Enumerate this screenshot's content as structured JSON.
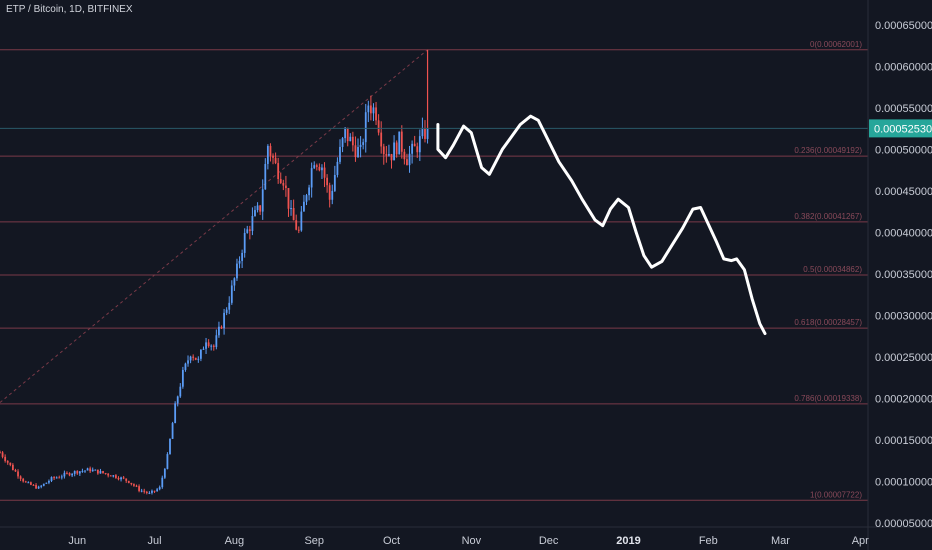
{
  "header": {
    "symbol": "ETP / Bitcoin, 1D, BITFINEX"
  },
  "colors": {
    "background": "#131722",
    "up": "#5b9cf6",
    "down": "#ef5350",
    "fib_line": "#7a3a48",
    "fib_label": "#8a4a5a",
    "drawing": "#ffffff",
    "price_tag": "#26a69a"
  },
  "chart_data": {
    "type": "candlestick",
    "title": "ETP / Bitcoin, 1D, BITFINEX",
    "y_ticks": [
      "0.00005000",
      "0.00010000",
      "0.00015000",
      "0.00020000",
      "0.00025000",
      "0.00030000",
      "0.00035000",
      "0.00040000",
      "0.00045000",
      "0.00050000",
      "0.00055000",
      "0.00060000",
      "0.00065000"
    ],
    "y_tick_values": [
      5e-05,
      0.0001,
      0.00015,
      0.0002,
      0.00025,
      0.0003,
      0.00035,
      0.0004,
      0.00045,
      0.0005,
      0.00055,
      0.0006,
      0.00065
    ],
    "ylim": [
      4.5e-05,
      0.00068
    ],
    "x_ticks": [
      {
        "label": "Jun",
        "date": "2018-06-01",
        "bold": false
      },
      {
        "label": "Jul",
        "date": "2018-07-01",
        "bold": false
      },
      {
        "label": "Aug",
        "date": "2018-08-01",
        "bold": false
      },
      {
        "label": "Sep",
        "date": "2018-09-01",
        "bold": false
      },
      {
        "label": "Oct",
        "date": "2018-10-01",
        "bold": false
      },
      {
        "label": "Nov",
        "date": "2018-11-01",
        "bold": false
      },
      {
        "label": "Dec",
        "date": "2018-12-01",
        "bold": false
      },
      {
        "label": "2019",
        "date": "2019-01-01",
        "bold": true
      },
      {
        "label": "Feb",
        "date": "2019-02-01",
        "bold": false
      },
      {
        "label": "Mar",
        "date": "2019-03-01",
        "bold": false
      },
      {
        "label": "Apr",
        "date": "2019-04-01",
        "bold": false
      }
    ],
    "xlim": [
      "2018-05-02",
      "2019-04-04"
    ],
    "last_price": {
      "label": "0.00052530",
      "value": 0.0005253
    },
    "fib_levels": [
      {
        "ratio": "0",
        "label": "0(0.00062001)",
        "value": 0.00062001
      },
      {
        "ratio": "0.236",
        "label": "0.236(0.00049192)",
        "value": 0.00049192
      },
      {
        "ratio": "0.382",
        "label": "0.382(0.00041267)",
        "value": 0.00041267
      },
      {
        "ratio": "0.5",
        "label": "0.5(0.00034862)",
        "value": 0.00034862
      },
      {
        "ratio": "0.618",
        "label": "0.618(0.00028457)",
        "value": 0.00028457
      },
      {
        "ratio": "0.786",
        "label": "0.786(0.00019338)",
        "value": 0.00019338
      },
      {
        "ratio": "1",
        "label": "1(0.00007722)",
        "value": 7.722e-05
      }
    ],
    "trend_line": {
      "from": {
        "date": "2018-05-02",
        "value": 0.000195
      },
      "to": {
        "date": "2018-10-15",
        "value": 0.00062001
      }
    },
    "price_path": [
      [
        "2018-05-02",
        0.000135
      ],
      [
        "2018-05-07",
        0.000115
      ],
      [
        "2018-05-12",
        9.8e-05
      ],
      [
        "2018-05-17",
        9.2e-05
      ],
      [
        "2018-05-22",
        0.000103
      ],
      [
        "2018-05-27",
        0.000108
      ],
      [
        "2018-06-01",
        0.000112
      ],
      [
        "2018-06-06",
        0.000114
      ],
      [
        "2018-06-11",
        0.00011
      ],
      [
        "2018-06-16",
        0.000106
      ],
      [
        "2018-06-21",
        0.0001
      ],
      [
        "2018-06-25",
        9e-05
      ],
      [
        "2018-06-29",
        8.5e-05
      ],
      [
        "2018-07-03",
        9.2e-05
      ],
      [
        "2018-07-06",
        0.00013
      ],
      [
        "2018-07-09",
        0.00019
      ],
      [
        "2018-07-12",
        0.00023
      ],
      [
        "2018-07-15",
        0.000255
      ],
      [
        "2018-07-18",
        0.000245
      ],
      [
        "2018-07-21",
        0.000272
      ],
      [
        "2018-07-24",
        0.000262
      ],
      [
        "2018-07-27",
        0.00029
      ],
      [
        "2018-07-30",
        0.00032
      ],
      [
        "2018-08-02",
        0.000355
      ],
      [
        "2018-08-05",
        0.000395
      ],
      [
        "2018-08-08",
        0.000415
      ],
      [
        "2018-08-11",
        0.00043
      ],
      [
        "2018-08-14",
        0.000505
      ],
      [
        "2018-08-17",
        0.00048
      ],
      [
        "2018-08-20",
        0.000465
      ],
      [
        "2018-08-23",
        0.00042
      ],
      [
        "2018-08-26",
        0.0004
      ],
      [
        "2018-08-29",
        0.00045
      ],
      [
        "2018-09-01",
        0.00049
      ],
      [
        "2018-09-04",
        0.00048
      ],
      [
        "2018-09-07",
        0.00044
      ],
      [
        "2018-09-10",
        0.000485
      ],
      [
        "2018-09-13",
        0.00052
      ],
      [
        "2018-09-16",
        0.000505
      ],
      [
        "2018-09-19",
        0.000495
      ],
      [
        "2018-09-22",
        0.000555
      ],
      [
        "2018-09-25",
        0.000545
      ],
      [
        "2018-09-28",
        0.0005
      ],
      [
        "2018-10-01",
        0.000495
      ],
      [
        "2018-10-04",
        0.00051
      ],
      [
        "2018-10-07",
        0.00049
      ],
      [
        "2018-10-10",
        0.0005
      ],
      [
        "2018-10-13",
        0.000515
      ],
      [
        "2018-10-15",
        0.0005253
      ]
    ],
    "projection_path": [
      [
        "2018-10-19",
        0.00053
      ],
      [
        "2018-10-19",
        0.0005
      ],
      [
        "2018-10-22",
        0.00049
      ],
      [
        "2018-10-25",
        0.000505
      ],
      [
        "2018-10-29",
        0.000528
      ],
      [
        "2018-11-01",
        0.00052
      ],
      [
        "2018-11-05",
        0.000478
      ],
      [
        "2018-11-08",
        0.00047
      ],
      [
        "2018-11-13",
        0.0005
      ],
      [
        "2018-11-20",
        0.00053
      ],
      [
        "2018-11-24",
        0.00054
      ],
      [
        "2018-11-27",
        0.000535
      ],
      [
        "2018-12-01",
        0.00051
      ],
      [
        "2018-12-05",
        0.000485
      ],
      [
        "2018-12-10",
        0.000462
      ],
      [
        "2018-12-14",
        0.00044
      ],
      [
        "2018-12-19",
        0.000415
      ],
      [
        "2018-12-22",
        0.000408
      ],
      [
        "2018-12-25",
        0.000428
      ],
      [
        "2018-12-28",
        0.00044
      ],
      [
        "2019-01-01",
        0.00043
      ],
      [
        "2019-01-04",
        0.0004
      ],
      [
        "2019-01-07",
        0.000372
      ],
      [
        "2019-01-10",
        0.000358
      ],
      [
        "2019-01-14",
        0.000365
      ],
      [
        "2019-01-18",
        0.000385
      ],
      [
        "2019-01-22",
        0.000405
      ],
      [
        "2019-01-26",
        0.000428
      ],
      [
        "2019-01-29",
        0.00043
      ],
      [
        "2019-02-01",
        0.00041
      ],
      [
        "2019-02-04",
        0.00039
      ],
      [
        "2019-02-07",
        0.000368
      ],
      [
        "2019-02-10",
        0.000366
      ],
      [
        "2019-02-12",
        0.000368
      ],
      [
        "2019-02-15",
        0.000355
      ],
      [
        "2019-02-18",
        0.00032
      ],
      [
        "2019-02-21",
        0.00029
      ],
      [
        "2019-02-23",
        0.000278
      ]
    ],
    "legend": null,
    "grid": false
  }
}
